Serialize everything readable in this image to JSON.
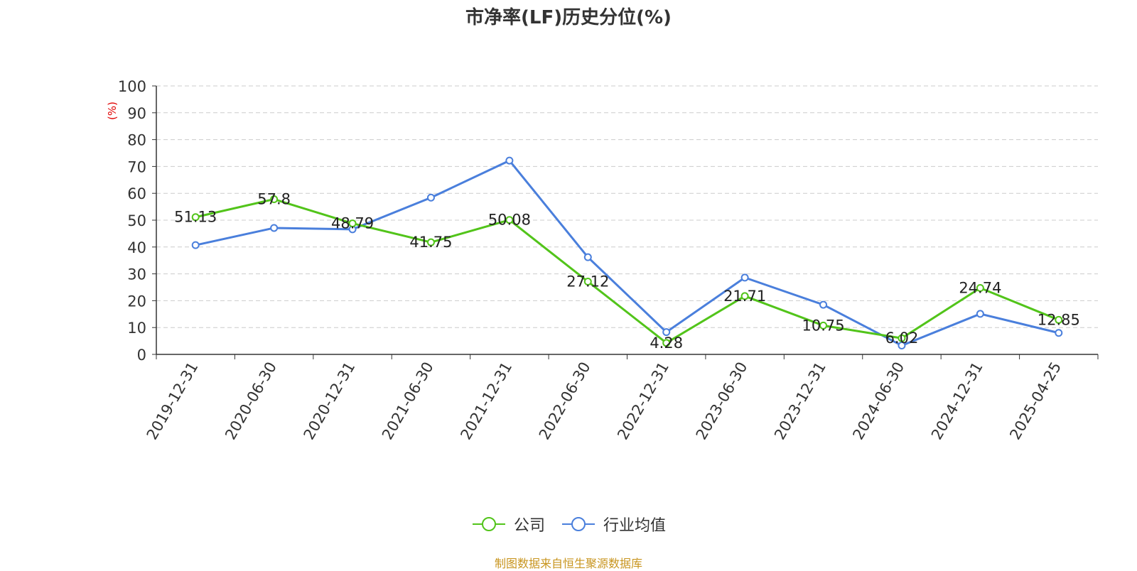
{
  "chart_data": {
    "type": "line",
    "title": "市净率(LF)历史分位(%)",
    "ylabel": "(%)",
    "ylim": [
      0,
      100
    ],
    "yticks": [
      0,
      10,
      20,
      30,
      40,
      50,
      60,
      70,
      80,
      90,
      100
    ],
    "categories": [
      "2019-12-31",
      "2020-06-30",
      "2020-12-31",
      "2021-06-30",
      "2021-12-31",
      "2022-06-30",
      "2022-12-31",
      "2023-06-30",
      "2023-12-31",
      "2024-06-30",
      "2024-12-31",
      "2025-04-25"
    ],
    "grid": true,
    "legend_position": "bottom",
    "series": [
      {
        "name": "公司",
        "color": "#52c41a",
        "values": [
          51.13,
          57.8,
          48.79,
          41.75,
          50.08,
          27.12,
          4.28,
          21.71,
          10.75,
          6.02,
          24.74,
          12.85
        ],
        "labels": [
          "51.13",
          "57.8",
          "48.79",
          "41.75",
          "50.08",
          "27.12",
          "4.28",
          "21.71",
          "10.75",
          "6.02",
          "24.74",
          "12.85"
        ]
      },
      {
        "name": "行业均值",
        "color": "#4a7fdc",
        "values": [
          40.7,
          47.1,
          46.6,
          58.4,
          72.2,
          36.2,
          8.3,
          28.6,
          18.5,
          3.3,
          15.1,
          8.0
        ]
      }
    ]
  },
  "footer": {
    "source": "制图数据来自恒生聚源数据库"
  }
}
